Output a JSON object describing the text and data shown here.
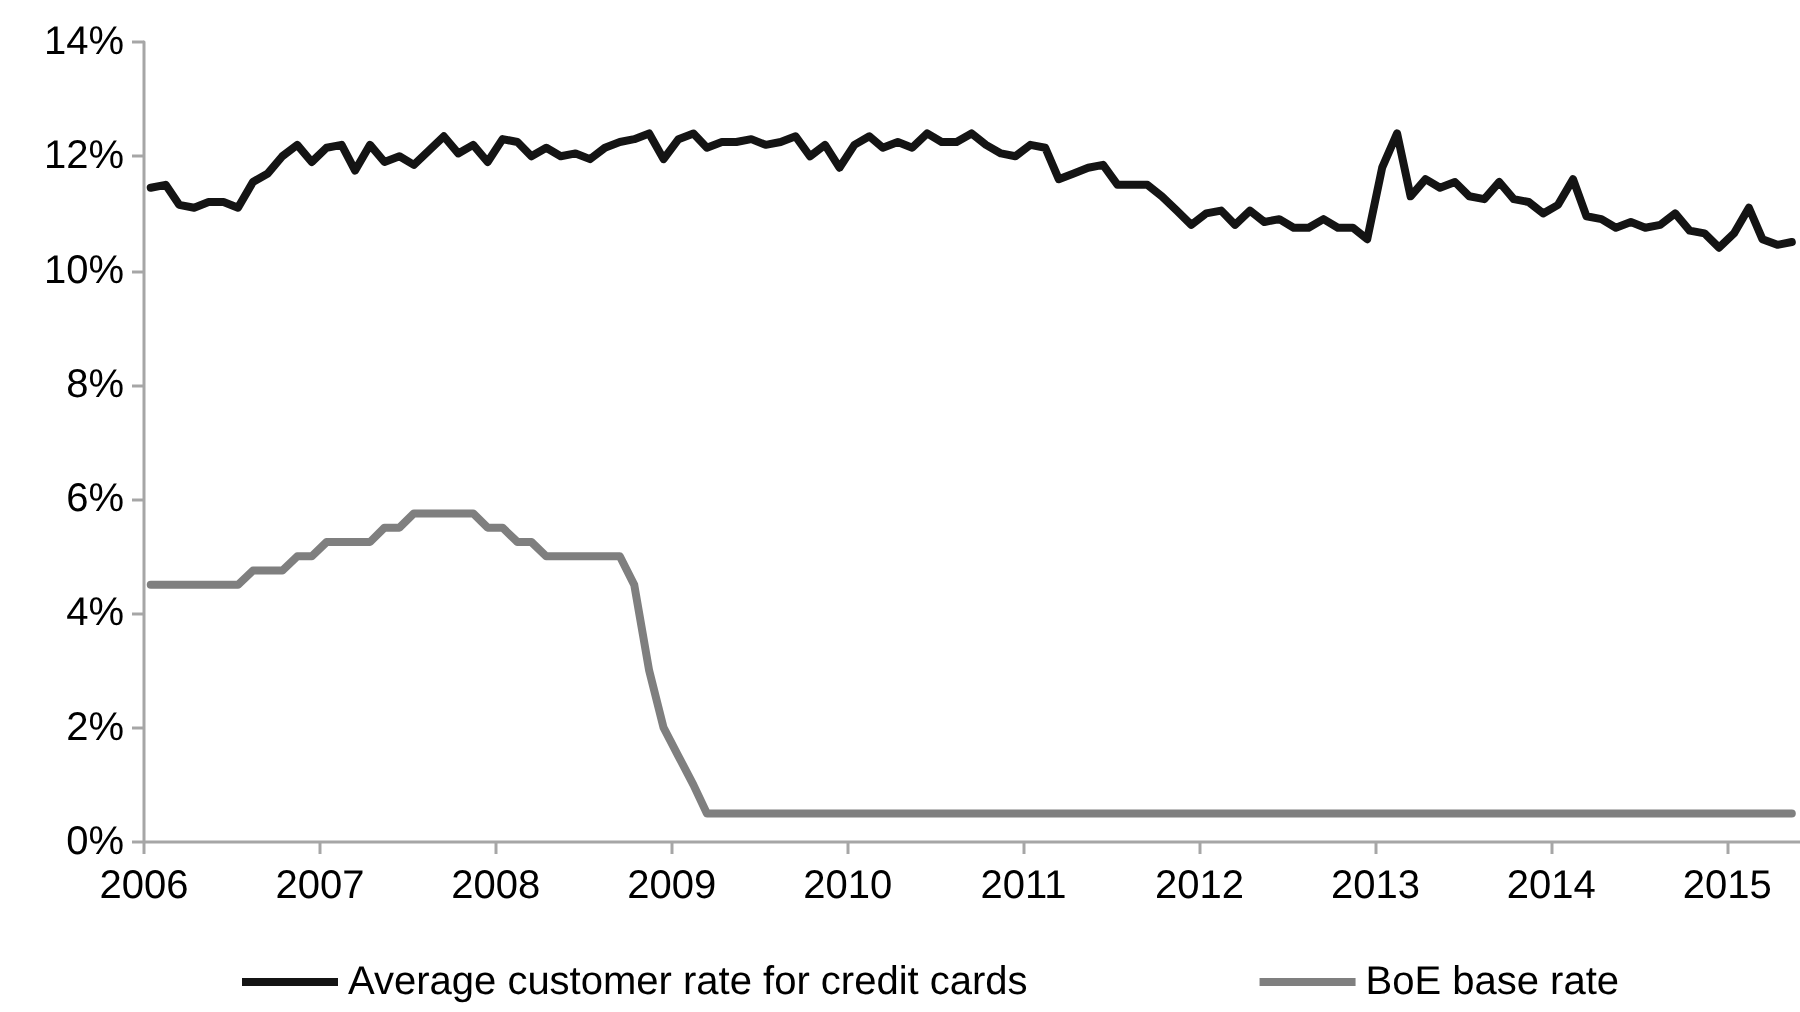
{
  "chart_data": {
    "type": "line",
    "x": [
      "2006-01-15",
      "2006-02-15",
      "2006-03-15",
      "2006-04-15",
      "2006-05-15",
      "2006-06-15",
      "2006-07-15",
      "2006-08-15",
      "2006-09-15",
      "2006-10-15",
      "2006-11-15",
      "2006-12-15",
      "2007-01-15",
      "2007-02-15",
      "2007-03-15",
      "2007-04-15",
      "2007-05-15",
      "2007-06-15",
      "2007-07-15",
      "2007-08-15",
      "2007-09-15",
      "2007-10-15",
      "2007-11-15",
      "2007-12-15",
      "2008-01-15",
      "2008-02-15",
      "2008-03-15",
      "2008-04-15",
      "2008-05-15",
      "2008-06-15",
      "2008-07-15",
      "2008-08-15",
      "2008-09-15",
      "2008-10-15",
      "2008-11-15",
      "2008-12-15",
      "2009-01-15",
      "2009-02-15",
      "2009-03-15",
      "2009-04-15",
      "2009-05-15",
      "2009-06-15",
      "2009-07-15",
      "2009-08-15",
      "2009-09-15",
      "2009-10-15",
      "2009-11-15",
      "2009-12-15",
      "2010-01-15",
      "2010-02-15",
      "2010-03-15",
      "2010-04-15",
      "2010-05-15",
      "2010-06-15",
      "2010-07-15",
      "2010-08-15",
      "2010-09-15",
      "2010-10-15",
      "2010-11-15",
      "2010-12-15",
      "2011-01-15",
      "2011-02-15",
      "2011-03-15",
      "2011-04-15",
      "2011-05-15",
      "2011-06-15",
      "2011-07-15",
      "2011-08-15",
      "2011-09-15",
      "2011-10-15",
      "2011-11-15",
      "2011-12-15",
      "2012-01-15",
      "2012-02-15",
      "2012-03-15",
      "2012-04-15",
      "2012-05-15",
      "2012-06-15",
      "2012-07-15",
      "2012-08-15",
      "2012-09-15",
      "2012-10-15",
      "2012-11-15",
      "2012-12-15",
      "2013-01-15",
      "2013-02-15",
      "2013-03-15",
      "2013-04-15",
      "2013-05-15",
      "2013-06-15",
      "2013-07-15",
      "2013-08-15",
      "2013-09-15",
      "2013-10-15",
      "2013-11-15",
      "2013-12-15",
      "2014-01-15",
      "2014-02-15",
      "2014-03-15",
      "2014-04-15",
      "2014-05-15",
      "2014-06-15",
      "2014-07-15",
      "2014-08-15",
      "2014-09-15",
      "2014-10-15",
      "2014-11-15",
      "2014-12-15",
      "2015-01-15",
      "2015-02-15",
      "2015-03-15",
      "2015-04-15",
      "2015-05-15"
    ],
    "xlim": [
      "2006-01-01",
      "2015-06-01"
    ],
    "xticks": [
      "2006",
      "2007",
      "2008",
      "2009",
      "2010",
      "2011",
      "2012",
      "2013",
      "2014",
      "2015"
    ],
    "ylim": [
      0,
      14
    ],
    "yticks": [
      {
        "value": 0,
        "label": "0%"
      },
      {
        "value": 2,
        "label": "2%"
      },
      {
        "value": 4,
        "label": "4%"
      },
      {
        "value": 6,
        "label": "6%"
      },
      {
        "value": 8,
        "label": "8%"
      },
      {
        "value": 10,
        "label": "10%"
      },
      {
        "value": 12,
        "label": "12%"
      },
      {
        "value": 14,
        "label": "14%"
      }
    ],
    "series": [
      {
        "name": "Average customer rate for credit cards",
        "color": "#141414",
        "values": [
          11.45,
          11.5,
          11.15,
          11.1,
          11.2,
          11.2,
          11.1,
          11.55,
          11.7,
          12.0,
          12.2,
          11.9,
          12.15,
          12.2,
          11.75,
          12.2,
          11.9,
          12.0,
          11.85,
          12.1,
          12.35,
          12.05,
          12.2,
          11.9,
          12.3,
          12.25,
          12.0,
          12.15,
          12.0,
          12.05,
          11.95,
          12.15,
          12.25,
          12.3,
          12.4,
          11.95,
          12.3,
          12.4,
          12.15,
          12.25,
          12.25,
          12.3,
          12.2,
          12.25,
          12.35,
          12.0,
          12.2,
          11.8,
          12.2,
          12.35,
          12.15,
          12.25,
          12.15,
          12.4,
          12.25,
          12.25,
          12.4,
          12.2,
          12.05,
          12.0,
          12.2,
          12.15,
          11.6,
          11.7,
          11.8,
          11.85,
          11.5,
          11.5,
          11.5,
          11.3,
          11.05,
          10.8,
          11.0,
          11.05,
          10.8,
          11.05,
          10.85,
          10.9,
          10.75,
          10.75,
          10.9,
          10.75,
          10.75,
          10.55,
          11.8,
          12.4,
          11.3,
          11.6,
          11.45,
          11.55,
          11.3,
          11.25,
          11.55,
          11.25,
          11.2,
          11.0,
          11.15,
          11.6,
          10.95,
          10.9,
          10.75,
          10.85,
          10.75,
          10.8,
          11.0,
          10.7,
          10.65,
          10.4,
          10.65,
          11.1,
          10.55,
          10.45,
          10.5
        ]
      },
      {
        "name": "BoE base rate",
        "color": "#7f7f7f",
        "values": [
          4.5,
          4.5,
          4.5,
          4.5,
          4.5,
          4.5,
          4.5,
          4.75,
          4.75,
          4.75,
          5,
          5,
          5.25,
          5.25,
          5.25,
          5.25,
          5.5,
          5.5,
          5.75,
          5.75,
          5.75,
          5.75,
          5.75,
          5.5,
          5.5,
          5.25,
          5.25,
          5,
          5,
          5,
          5,
          5,
          5,
          4.5,
          3,
          2,
          1.5,
          1,
          0.5,
          0.5,
          0.5,
          0.5,
          0.5,
          0.5,
          0.5,
          0.5,
          0.5,
          0.5,
          0.5,
          0.5,
          0.5,
          0.5,
          0.5,
          0.5,
          0.5,
          0.5,
          0.5,
          0.5,
          0.5,
          0.5,
          0.5,
          0.5,
          0.5,
          0.5,
          0.5,
          0.5,
          0.5,
          0.5,
          0.5,
          0.5,
          0.5,
          0.5,
          0.5,
          0.5,
          0.5,
          0.5,
          0.5,
          0.5,
          0.5,
          0.5,
          0.5,
          0.5,
          0.5,
          0.5,
          0.5,
          0.5,
          0.5,
          0.5,
          0.5,
          0.5,
          0.5,
          0.5,
          0.5,
          0.5,
          0.5,
          0.5,
          0.5,
          0.5,
          0.5,
          0.5,
          0.5,
          0.5,
          0.5,
          0.5,
          0.5,
          0.5,
          0.5,
          0.5,
          0.5,
          0.5,
          0.5,
          0.5,
          0.5
        ]
      }
    ],
    "legend": "bottom",
    "grid": false,
    "marker": "none",
    "line_style": "solid"
  }
}
